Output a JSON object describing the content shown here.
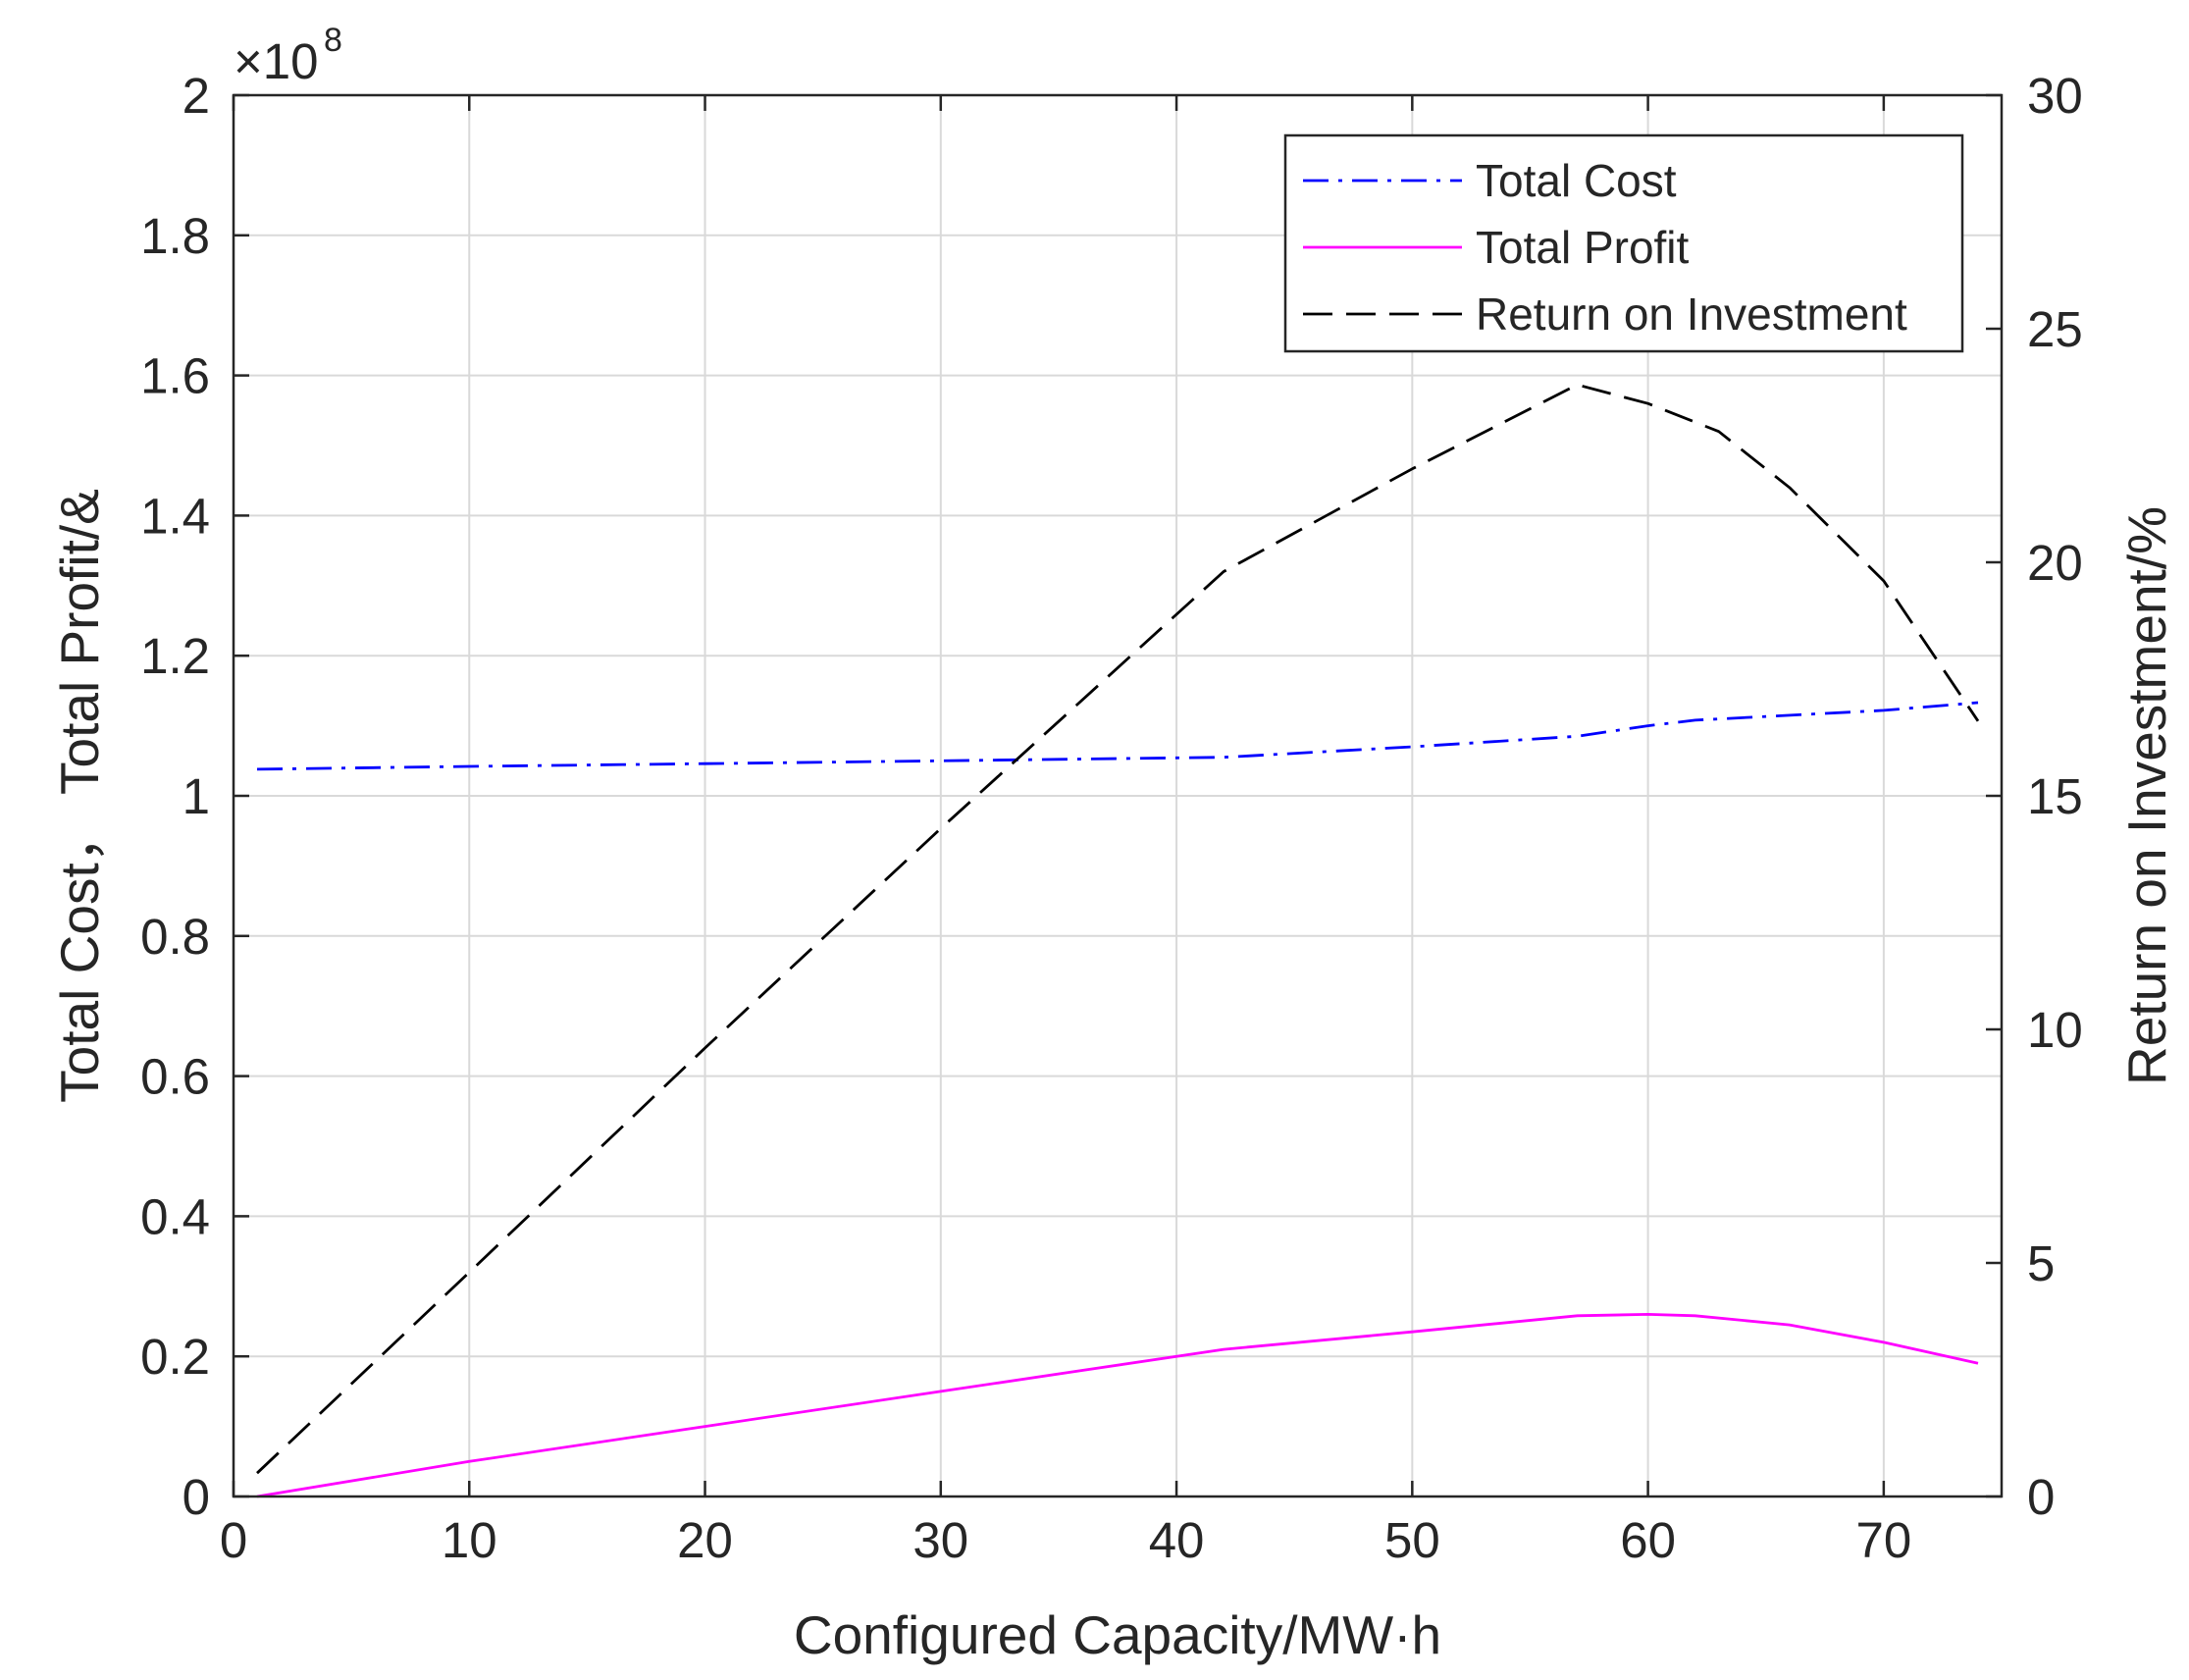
{
  "chart_data": {
    "type": "line",
    "xlabel": "Configured Capacity/MW·h",
    "ylabel_left": "Total Cost， Total Profit/&",
    "ylabel_right": "Return on Investment/%",
    "left_multiplier": "×10",
    "left_multiplier_exp": "8",
    "xlim": [
      0,
      75
    ],
    "ylim_left": [
      0,
      2
    ],
    "ylim_right": [
      0,
      30
    ],
    "x_ticks": [
      0,
      10,
      20,
      30,
      40,
      50,
      60,
      70
    ],
    "y_left_ticks": [
      0,
      0.2,
      0.4,
      0.6,
      0.8,
      1,
      1.2,
      1.4,
      1.6,
      1.8,
      2
    ],
    "y_right_ticks": [
      0,
      5,
      10,
      15,
      20,
      25,
      30
    ],
    "grid": true,
    "legend_position": "top-right",
    "series": [
      {
        "name": "Total Cost",
        "axis": "left",
        "color": "#0000ff",
        "style": "dashdot",
        "x": [
          1,
          10,
          20,
          30,
          42,
          50,
          57,
          60,
          62,
          70,
          74
        ],
        "y": [
          1.038,
          1.042,
          1.046,
          1.05,
          1.055,
          1.07,
          1.085,
          1.1,
          1.108,
          1.122,
          1.133
        ]
      },
      {
        "name": "Total Profit",
        "axis": "left",
        "color": "#ff00ff",
        "style": "solid",
        "x": [
          1,
          10,
          20,
          30,
          42,
          50,
          57,
          60,
          62,
          66,
          70,
          74
        ],
        "y": [
          0.0,
          0.05,
          0.1,
          0.15,
          0.21,
          0.235,
          0.258,
          0.26,
          0.258,
          0.245,
          0.22,
          0.19
        ]
      },
      {
        "name": "Return on Investment",
        "axis": "right",
        "color": "#000000",
        "style": "dashed",
        "x": [
          1,
          10,
          20,
          30,
          42,
          50,
          57,
          60,
          63,
          66,
          70,
          74
        ],
        "y": [
          0.5,
          4.8,
          9.6,
          14.3,
          19.8,
          22.0,
          23.8,
          23.4,
          22.8,
          21.6,
          19.6,
          16.6
        ]
      }
    ]
  }
}
